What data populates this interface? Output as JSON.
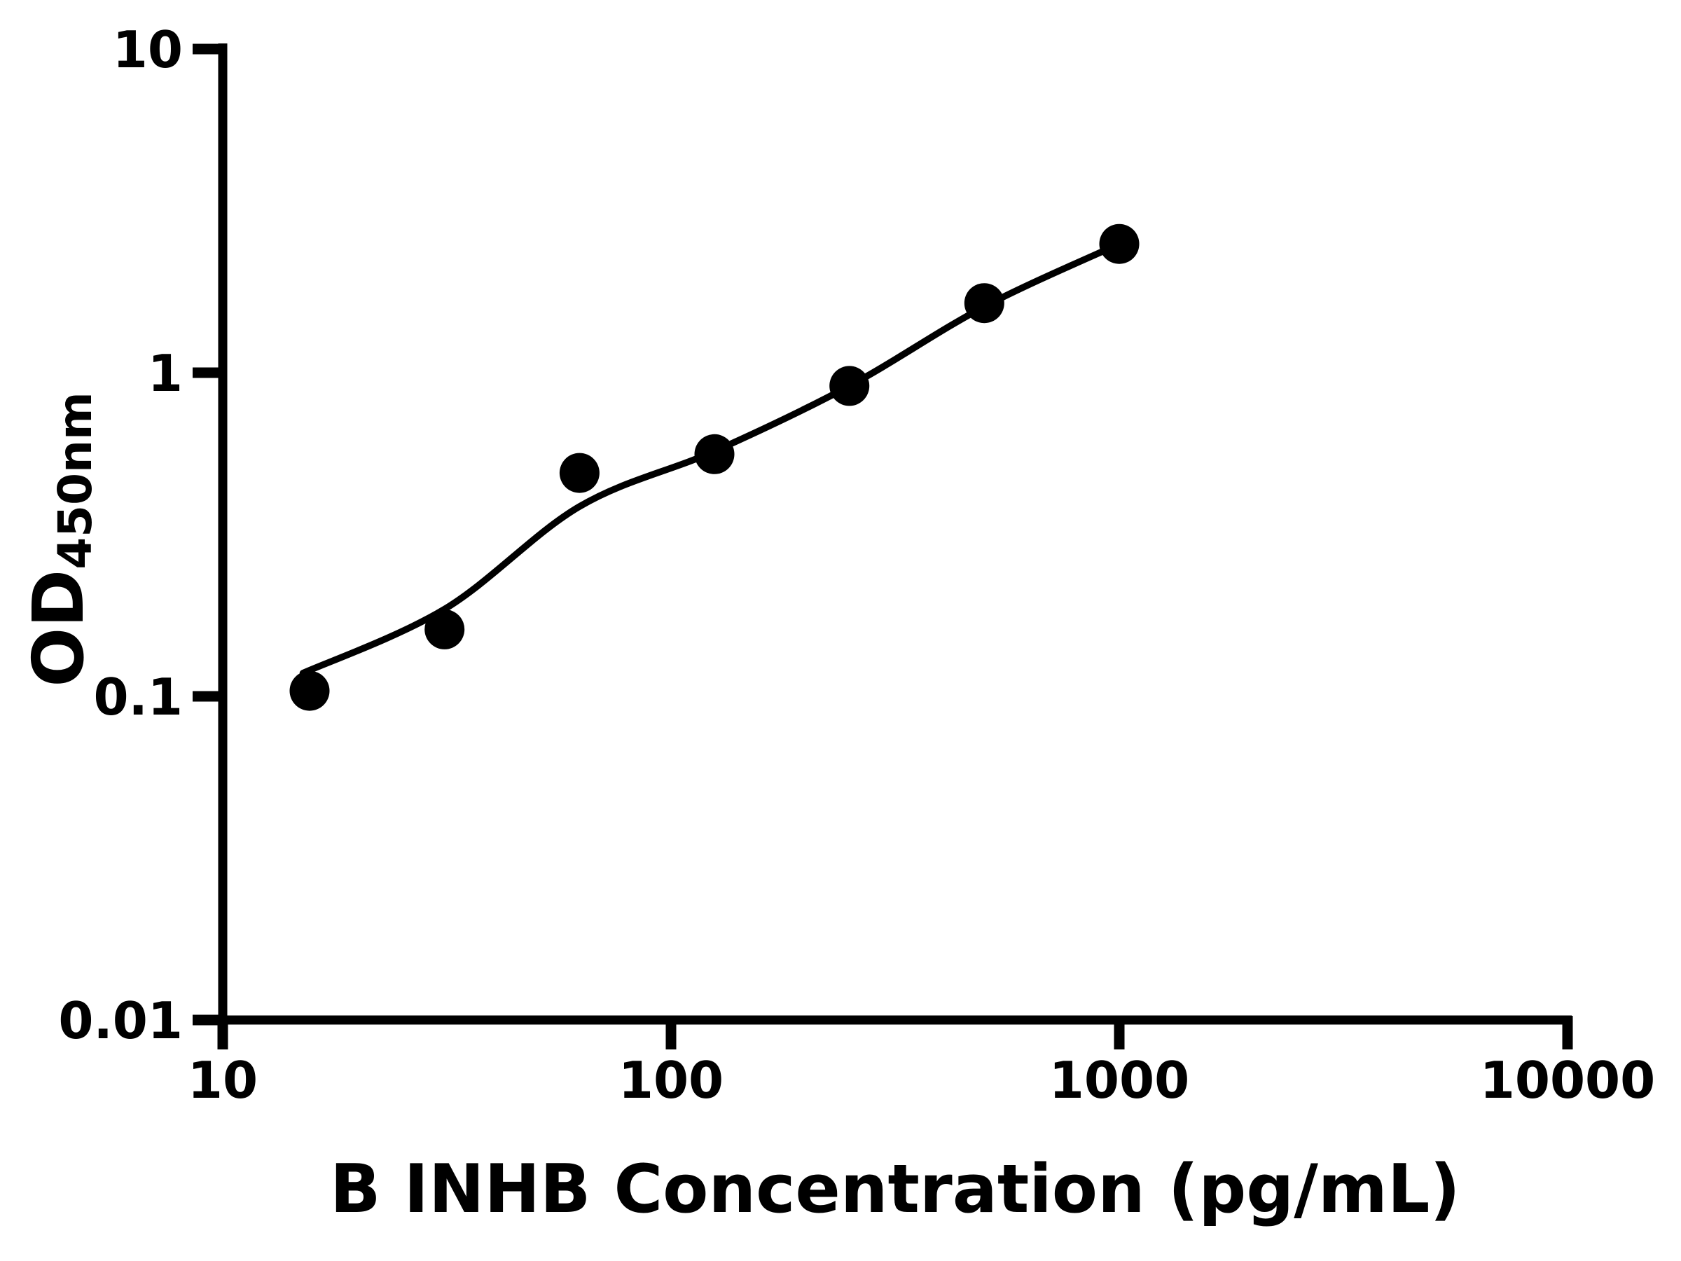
{
  "figure": {
    "background_color": "#ffffff",
    "foreground_color": "#000000"
  },
  "chart_data": {
    "type": "scatter",
    "title": "",
    "xlabel": "B INHB Concentration (pg/mL)",
    "ylabel": "OD",
    "ylabel_subscript": "450nm",
    "x_scale": "log10",
    "y_scale": "log10",
    "xlim": [
      10,
      10000
    ],
    "ylim": [
      0.01,
      10
    ],
    "x_ticks": [
      10,
      100,
      1000,
      10000
    ],
    "x_tick_labels": [
      "10",
      "100",
      "1000",
      "10000"
    ],
    "y_ticks": [
      10,
      1,
      0.1,
      0.01
    ],
    "y_tick_labels": [
      "10",
      "1",
      "0.1",
      "0.01"
    ],
    "grid": false,
    "legend": null,
    "series": [
      {
        "name": "standard-points",
        "marker": "filled-circle",
        "color": "#000000",
        "x": [
          15.625,
          31.25,
          62.5,
          125,
          250,
          500,
          1000
        ],
        "y": [
          0.104,
          0.161,
          0.49,
          0.56,
          0.91,
          1.64,
          2.5
        ]
      }
    ],
    "fit_curve": {
      "name": "standard-curve-fit",
      "color": "#000000",
      "points": [
        [
          15.1,
          0.118
        ],
        [
          31.25,
          0.186
        ],
        [
          62.5,
          0.386
        ],
        [
          125,
          0.572
        ],
        [
          250,
          0.91
        ],
        [
          500,
          1.6
        ],
        [
          1000,
          2.5
        ]
      ]
    }
  }
}
